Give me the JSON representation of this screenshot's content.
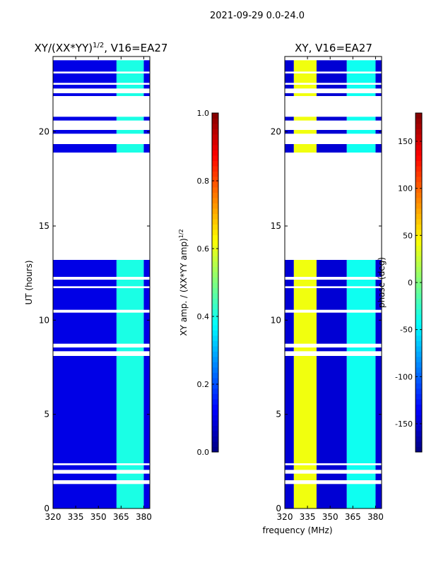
{
  "figure": {
    "suptitle": "2021-09-29 0.0-24.0",
    "shared_xlabel": "frequency (MHz)"
  },
  "chart_data": [
    {
      "type": "heatmap",
      "title_base": "XY/(XX*YY)",
      "title_exp": "1/2",
      "title_rest": ", V16=EA27",
      "xlabel": "",
      "ylabel": "UT (hours)",
      "xlim": [
        320,
        384
      ],
      "ylim": [
        0,
        24
      ],
      "xticks": [
        320,
        335,
        350,
        365,
        380
      ],
      "yticks": [
        0,
        5,
        10,
        15,
        20
      ],
      "colorbar": {
        "label_base": "XY amp. / (XX*YY amp)",
        "label_exp": "1/2",
        "range": [
          0.0,
          1.0
        ],
        "ticks": [
          "0.0",
          "0.2",
          "0.4",
          "0.6",
          "0.8",
          "1.0"
        ],
        "colormap": "jet"
      },
      "data_segments_hours": [
        [
          0.0,
          1.3
        ],
        [
          1.5,
          1.85
        ],
        [
          2.05,
          2.3
        ],
        [
          2.4,
          8.1
        ],
        [
          8.35,
          8.55
        ],
        [
          8.75,
          10.4
        ],
        [
          10.55,
          11.7
        ],
        [
          11.8,
          12.15
        ],
        [
          12.3,
          13.2
        ],
        [
          18.9,
          19.35
        ],
        [
          19.9,
          20.1
        ],
        [
          20.6,
          20.8
        ],
        [
          21.9,
          22.05
        ],
        [
          22.3,
          22.5
        ],
        [
          22.6,
          23.1
        ],
        [
          23.2,
          23.8
        ]
      ],
      "bands": [
        {
          "freq_mhz": [
            320,
            362
          ],
          "value": 0.1
        },
        {
          "freq_mhz": [
            362,
            380
          ],
          "value": 0.4
        },
        {
          "freq_mhz": [
            380,
            384
          ],
          "value": 0.1
        }
      ]
    },
    {
      "type": "heatmap",
      "title_base": "XY, V16=EA27",
      "title_exp": "",
      "title_rest": "",
      "xlabel": "frequency (MHz)",
      "ylabel": "",
      "xlim": [
        320,
        384
      ],
      "ylim": [
        0,
        24
      ],
      "xticks": [
        320,
        335,
        350,
        365,
        380
      ],
      "yticks": [
        0,
        5,
        10,
        15,
        20
      ],
      "colorbar": {
        "label_base": "phase (deg)",
        "label_exp": "",
        "range": [
          -180,
          180
        ],
        "ticks": [
          "-150",
          "-100",
          "-50",
          "0",
          "50",
          "100",
          "150"
        ],
        "tick_values": [
          -150,
          -100,
          -50,
          0,
          50,
          100,
          150
        ],
        "colormap": "jet"
      },
      "data_segments_hours": [
        [
          0.0,
          1.3
        ],
        [
          1.5,
          1.85
        ],
        [
          2.05,
          2.3
        ],
        [
          2.4,
          8.1
        ],
        [
          8.35,
          8.55
        ],
        [
          8.75,
          10.4
        ],
        [
          10.55,
          11.7
        ],
        [
          11.8,
          12.15
        ],
        [
          12.3,
          13.2
        ],
        [
          18.9,
          19.35
        ],
        [
          19.9,
          20.1
        ],
        [
          20.6,
          20.8
        ],
        [
          21.9,
          22.05
        ],
        [
          22.3,
          22.5
        ],
        [
          22.6,
          23.1
        ],
        [
          23.2,
          23.8
        ]
      ],
      "bands": [
        {
          "freq_mhz": [
            320,
            326
          ],
          "value": -150
        },
        {
          "freq_mhz": [
            326,
            341
          ],
          "value": 40
        },
        {
          "freq_mhz": [
            341,
            361
          ],
          "value": -150
        },
        {
          "freq_mhz": [
            361,
            380
          ],
          "value": -40
        },
        {
          "freq_mhz": [
            380,
            384
          ],
          "value": -150
        }
      ]
    }
  ]
}
